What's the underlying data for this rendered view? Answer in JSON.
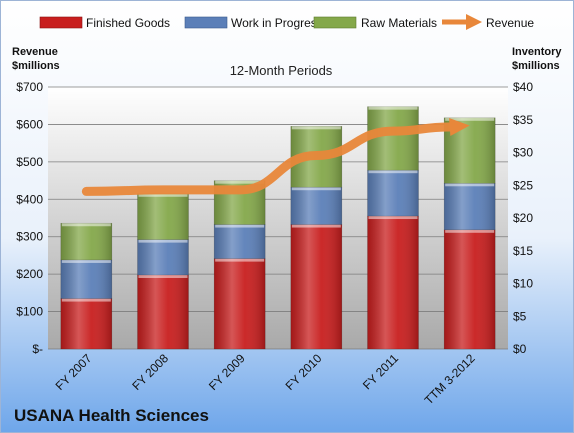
{
  "chart_data": {
    "type": "bar",
    "title": "12-Month Periods",
    "company": "USANA Health Sciences",
    "categories": [
      "FY 2007",
      "FY 2008",
      "FY 2009",
      "FY 2010",
      "FY 2011",
      "TTM 3-2012"
    ],
    "stacked": true,
    "series": [
      {
        "name": "Finished Goods",
        "axis": "right",
        "color": "#c81e1e",
        "values": [
          7.7,
          11.3,
          13.8,
          19.0,
          20.3,
          18.2
        ]
      },
      {
        "name": "Work in Progress",
        "axis": "right",
        "color": "#5b7fb8",
        "values": [
          5.9,
          5.4,
          5.2,
          5.7,
          7.0,
          7.1
        ]
      },
      {
        "name": "Raw Materials",
        "axis": "right",
        "color": "#84a84a",
        "values": [
          5.6,
          7.0,
          6.7,
          9.3,
          9.7,
          10.0
        ]
      },
      {
        "name": "Revenue",
        "axis": "left",
        "type": "line",
        "color": "#e8873a",
        "values": [
          421,
          425,
          425,
          517,
          582,
          597
        ]
      }
    ],
    "y_left": {
      "label_line1": "Revenue",
      "label_line2": "$millions",
      "ylim": [
        0,
        700
      ],
      "ticks": [
        0,
        100,
        200,
        300,
        400,
        500,
        600,
        700
      ],
      "tick_labels": [
        "$-",
        "$100",
        "$200",
        "$300",
        "$400",
        "$500",
        "$600",
        "$700"
      ]
    },
    "y_right": {
      "label_line1": "Inventory",
      "label_line2": "$millions",
      "ylim": [
        0,
        40
      ],
      "ticks": [
        0,
        5,
        10,
        15,
        20,
        25,
        30,
        35,
        40
      ],
      "tick_labels": [
        "$0",
        "$5",
        "$10",
        "$15",
        "$20",
        "$25",
        "$30",
        "$35",
        "$40"
      ]
    },
    "grid": true,
    "legend": "top"
  }
}
